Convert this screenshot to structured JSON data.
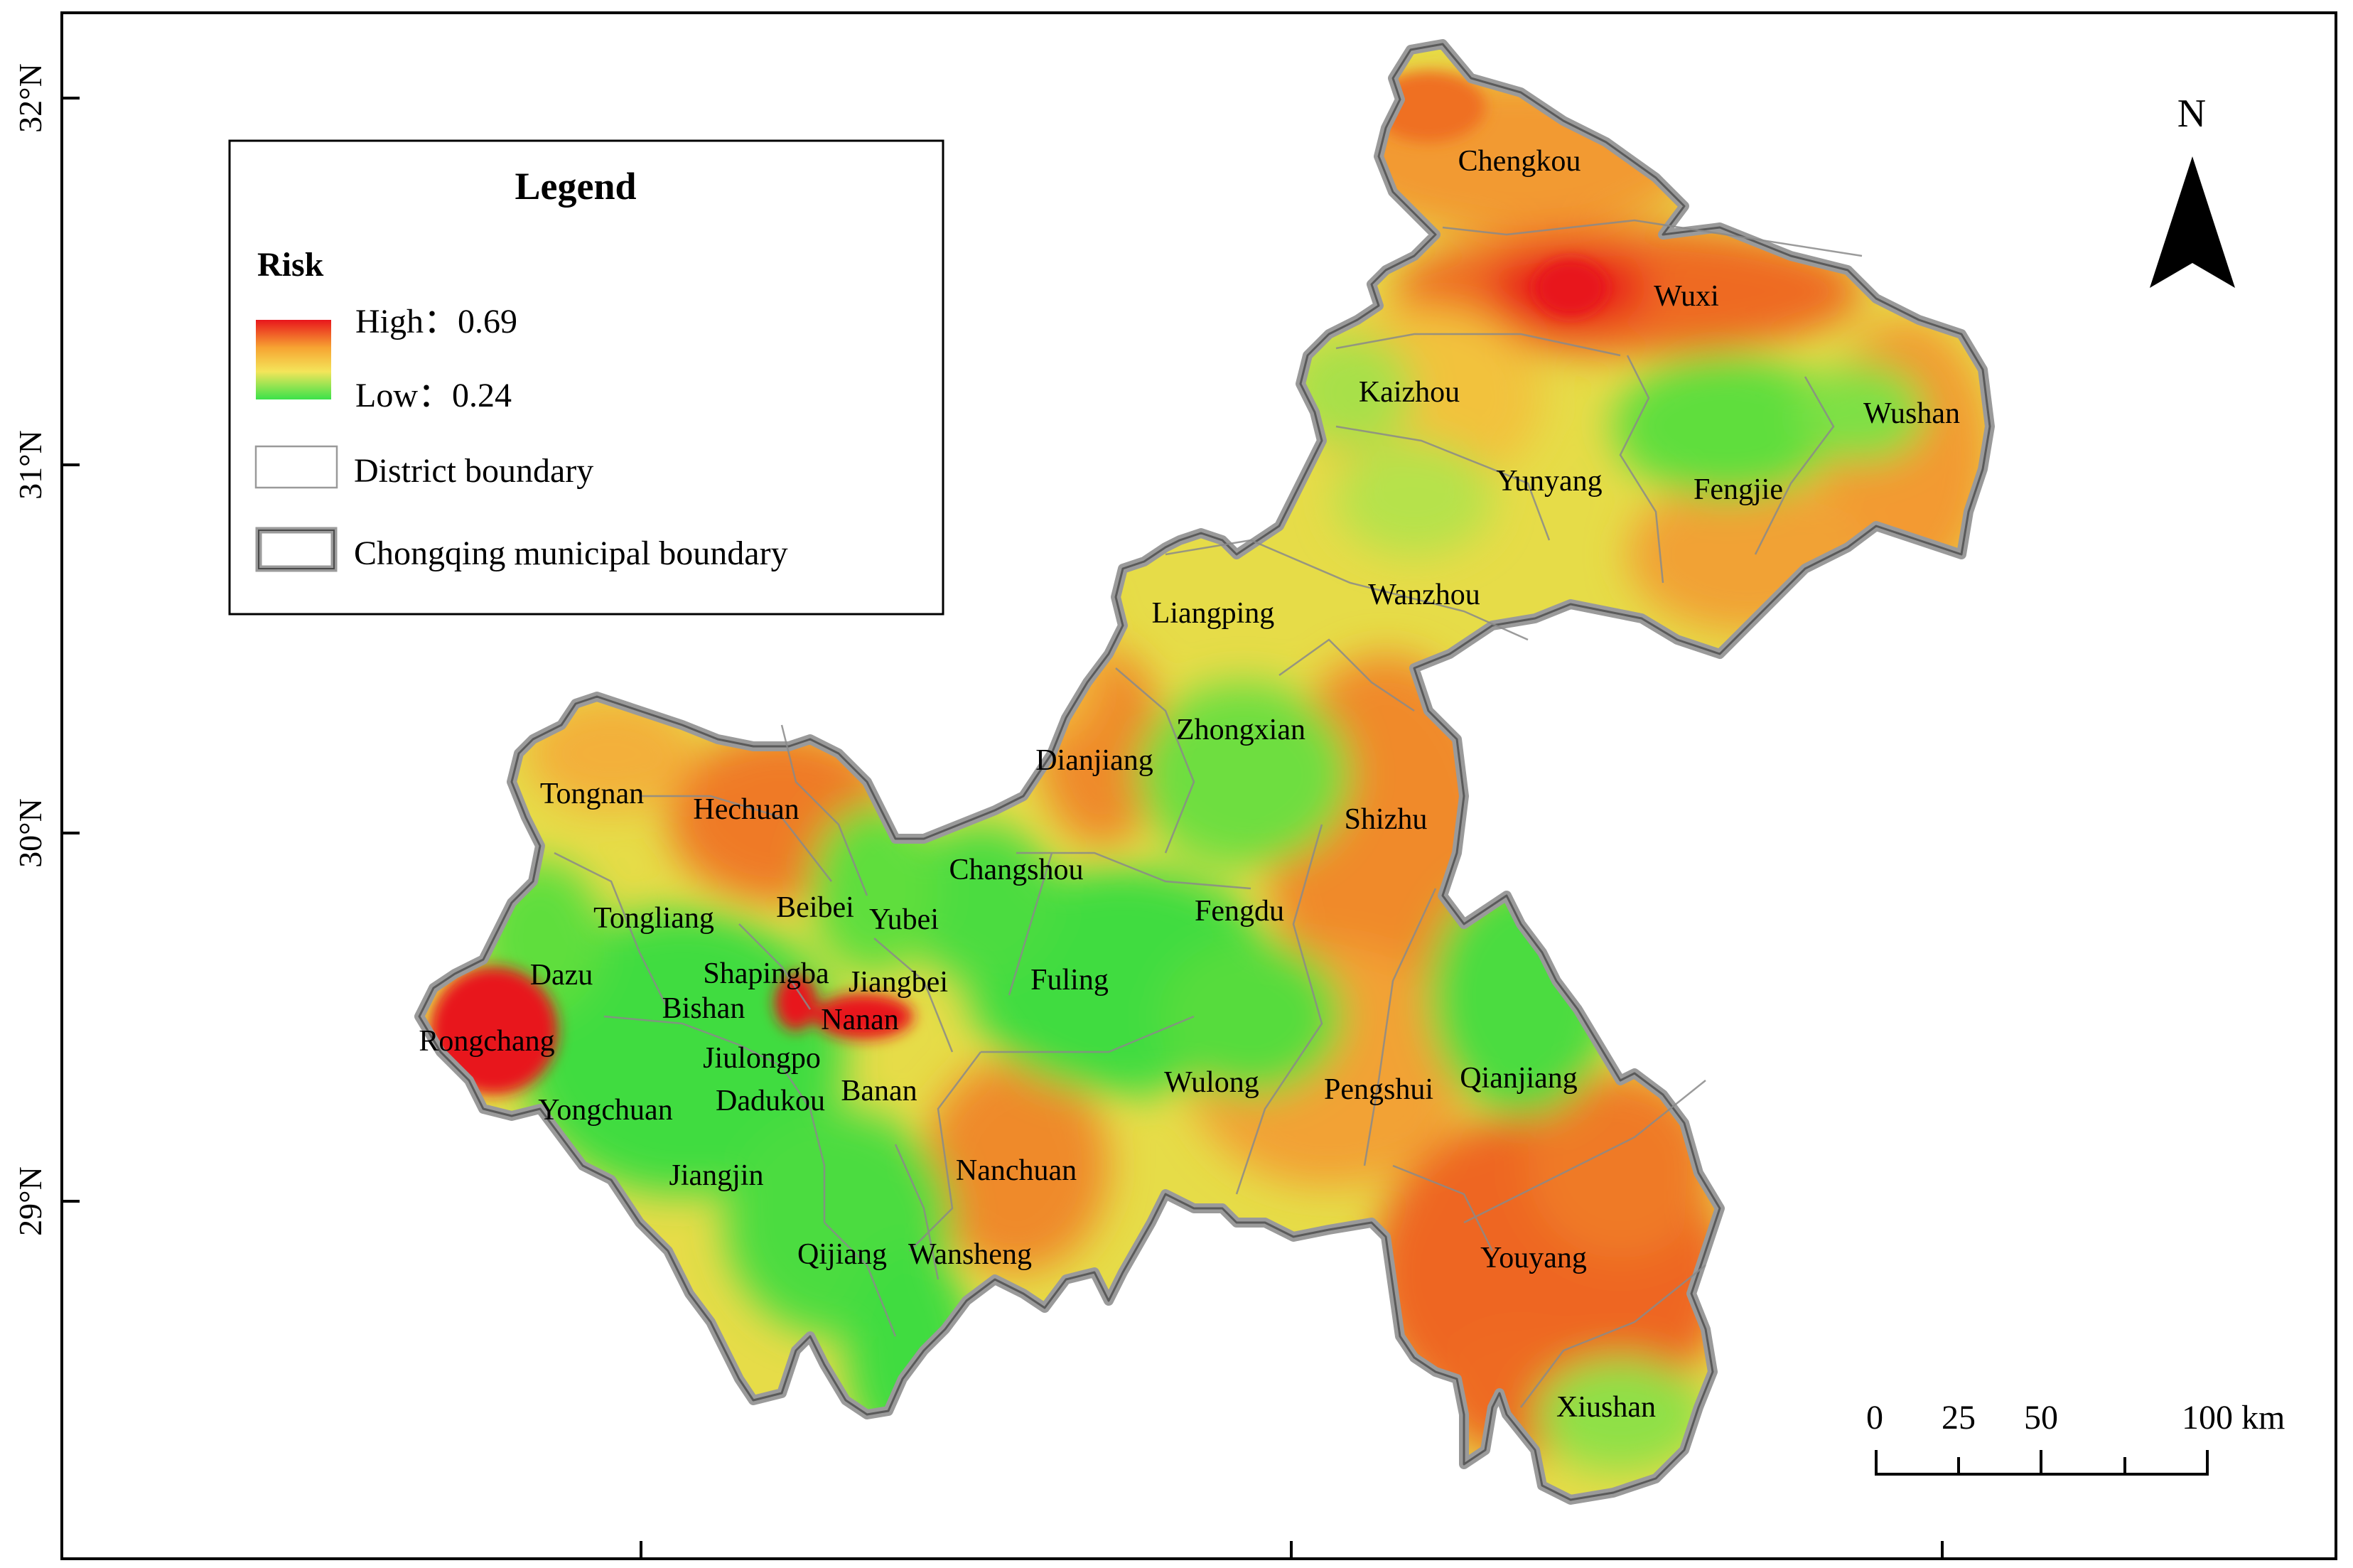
{
  "latitude_labels": [
    "32°N",
    "31°N",
    "30°N",
    "29°N"
  ],
  "legend": {
    "title": "Legend",
    "risk_heading": "Risk",
    "high_label": "High：0.69",
    "low_label": "Low：0.24",
    "district_boundary_label": "District boundary",
    "municipal_boundary_label": "Chongqing municipal boundary",
    "ramp_colors": [
      "#e8161c",
      "#f7a432",
      "#f4e55a",
      "#3be24a"
    ]
  },
  "north_arrow": {
    "label": "N"
  },
  "scale_bar": {
    "labels": [
      "0",
      "25",
      "50",
      "100 km"
    ]
  },
  "districts": [
    "Chengkou",
    "Wuxi",
    "Kaizhou",
    "Wushan",
    "Yunyang",
    "Fengjie",
    "Wanzhou",
    "Liangping",
    "Zhongxian",
    "Dianjiang",
    "Shizhu",
    "Tongnan",
    "Hechuan",
    "Changshou",
    "Tongliang",
    "Beibei",
    "Yubei",
    "Fengdu",
    "Dazu",
    "Shapingba",
    "Jiangbei",
    "Fuling",
    "Bishan",
    "Nanan",
    "Rongchang",
    "Jiulongpo",
    "Banan",
    "Wulong",
    "Pengshui",
    "Qianjiang",
    "Yongchuan",
    "Dadukou",
    "Nanchuan",
    "Jiangjin",
    "Youyang",
    "Qijiang",
    "Wansheng",
    "Xiushan"
  ],
  "colors": {
    "high_risk": "#e8161c",
    "mid_risk": "#f39a30",
    "low_mid_risk": "#eadf4c",
    "low_risk": "#3fdc3f",
    "municipal_boundary": "#9a9a9a"
  }
}
